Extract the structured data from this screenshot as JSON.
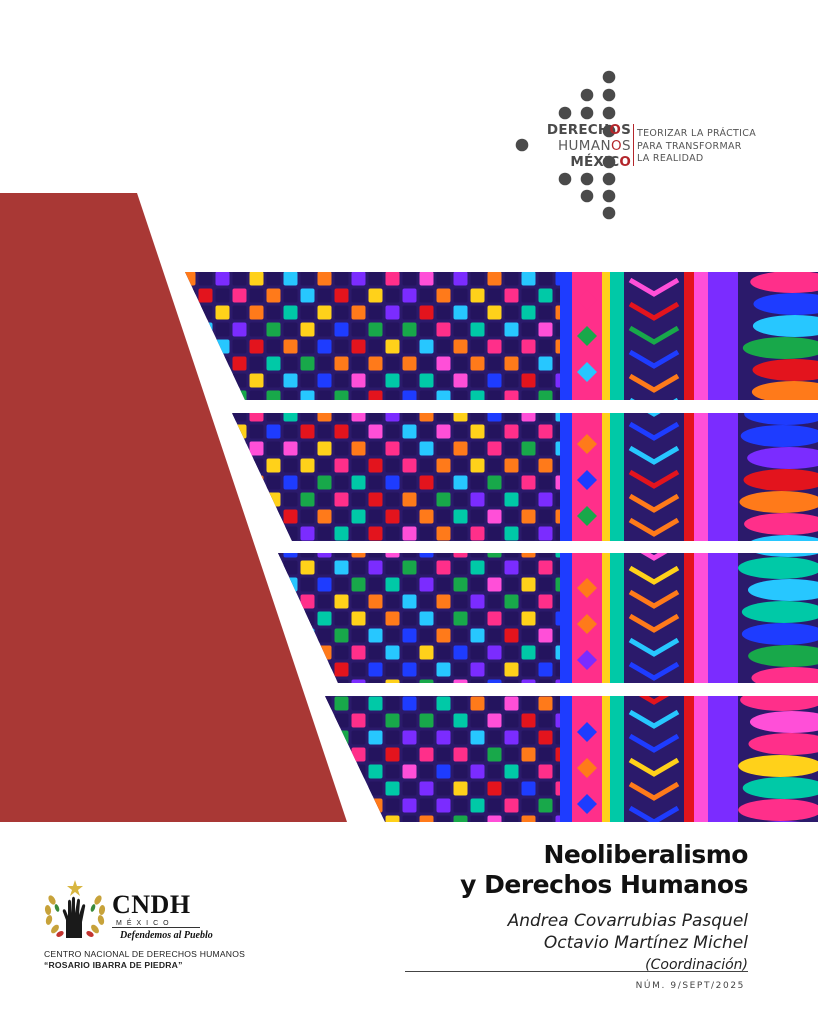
{
  "logo": {
    "line1_prefix": "DERECH",
    "line1_accent": "O",
    "line1_suffix": "S",
    "line2_prefix": "HUMAN",
    "line2_accent": "O",
    "line2_suffix": "S",
    "line3_prefix": "MÉXIC",
    "line3_accent": "O",
    "slogan": [
      "TEORIZAR LA PRÁCTICA",
      "PARA TRANSFORMAR",
      "LA REALIDAD"
    ]
  },
  "colors": {
    "accent_red": "#b3262b",
    "panel_red": "#a93835",
    "dot_gray": "#4a4a4a"
  },
  "title": {
    "line1": "Neoliberalismo",
    "line2": "y Derechos Humanos"
  },
  "authors": [
    "Andrea Covarrubias Pasquel",
    "Octavio Martínez Michel"
  ],
  "coordination": "(Coordinación)",
  "issue": "NÚM. 9/SEPT/2025",
  "cndh": {
    "name": "CNDH",
    "country": "MÉXICO",
    "motto": "Defendemos al Pueblo",
    "full_name": "CENTRO NACIONAL DE DERECHOS HUMANOS",
    "subtitle": "“ROSARIO IBARRA DE PIEDRA”",
    "emblem_icon": "raised-hand-laurel-icon"
  },
  "artwork": {
    "image_icon": "embroidered-textile-image"
  }
}
